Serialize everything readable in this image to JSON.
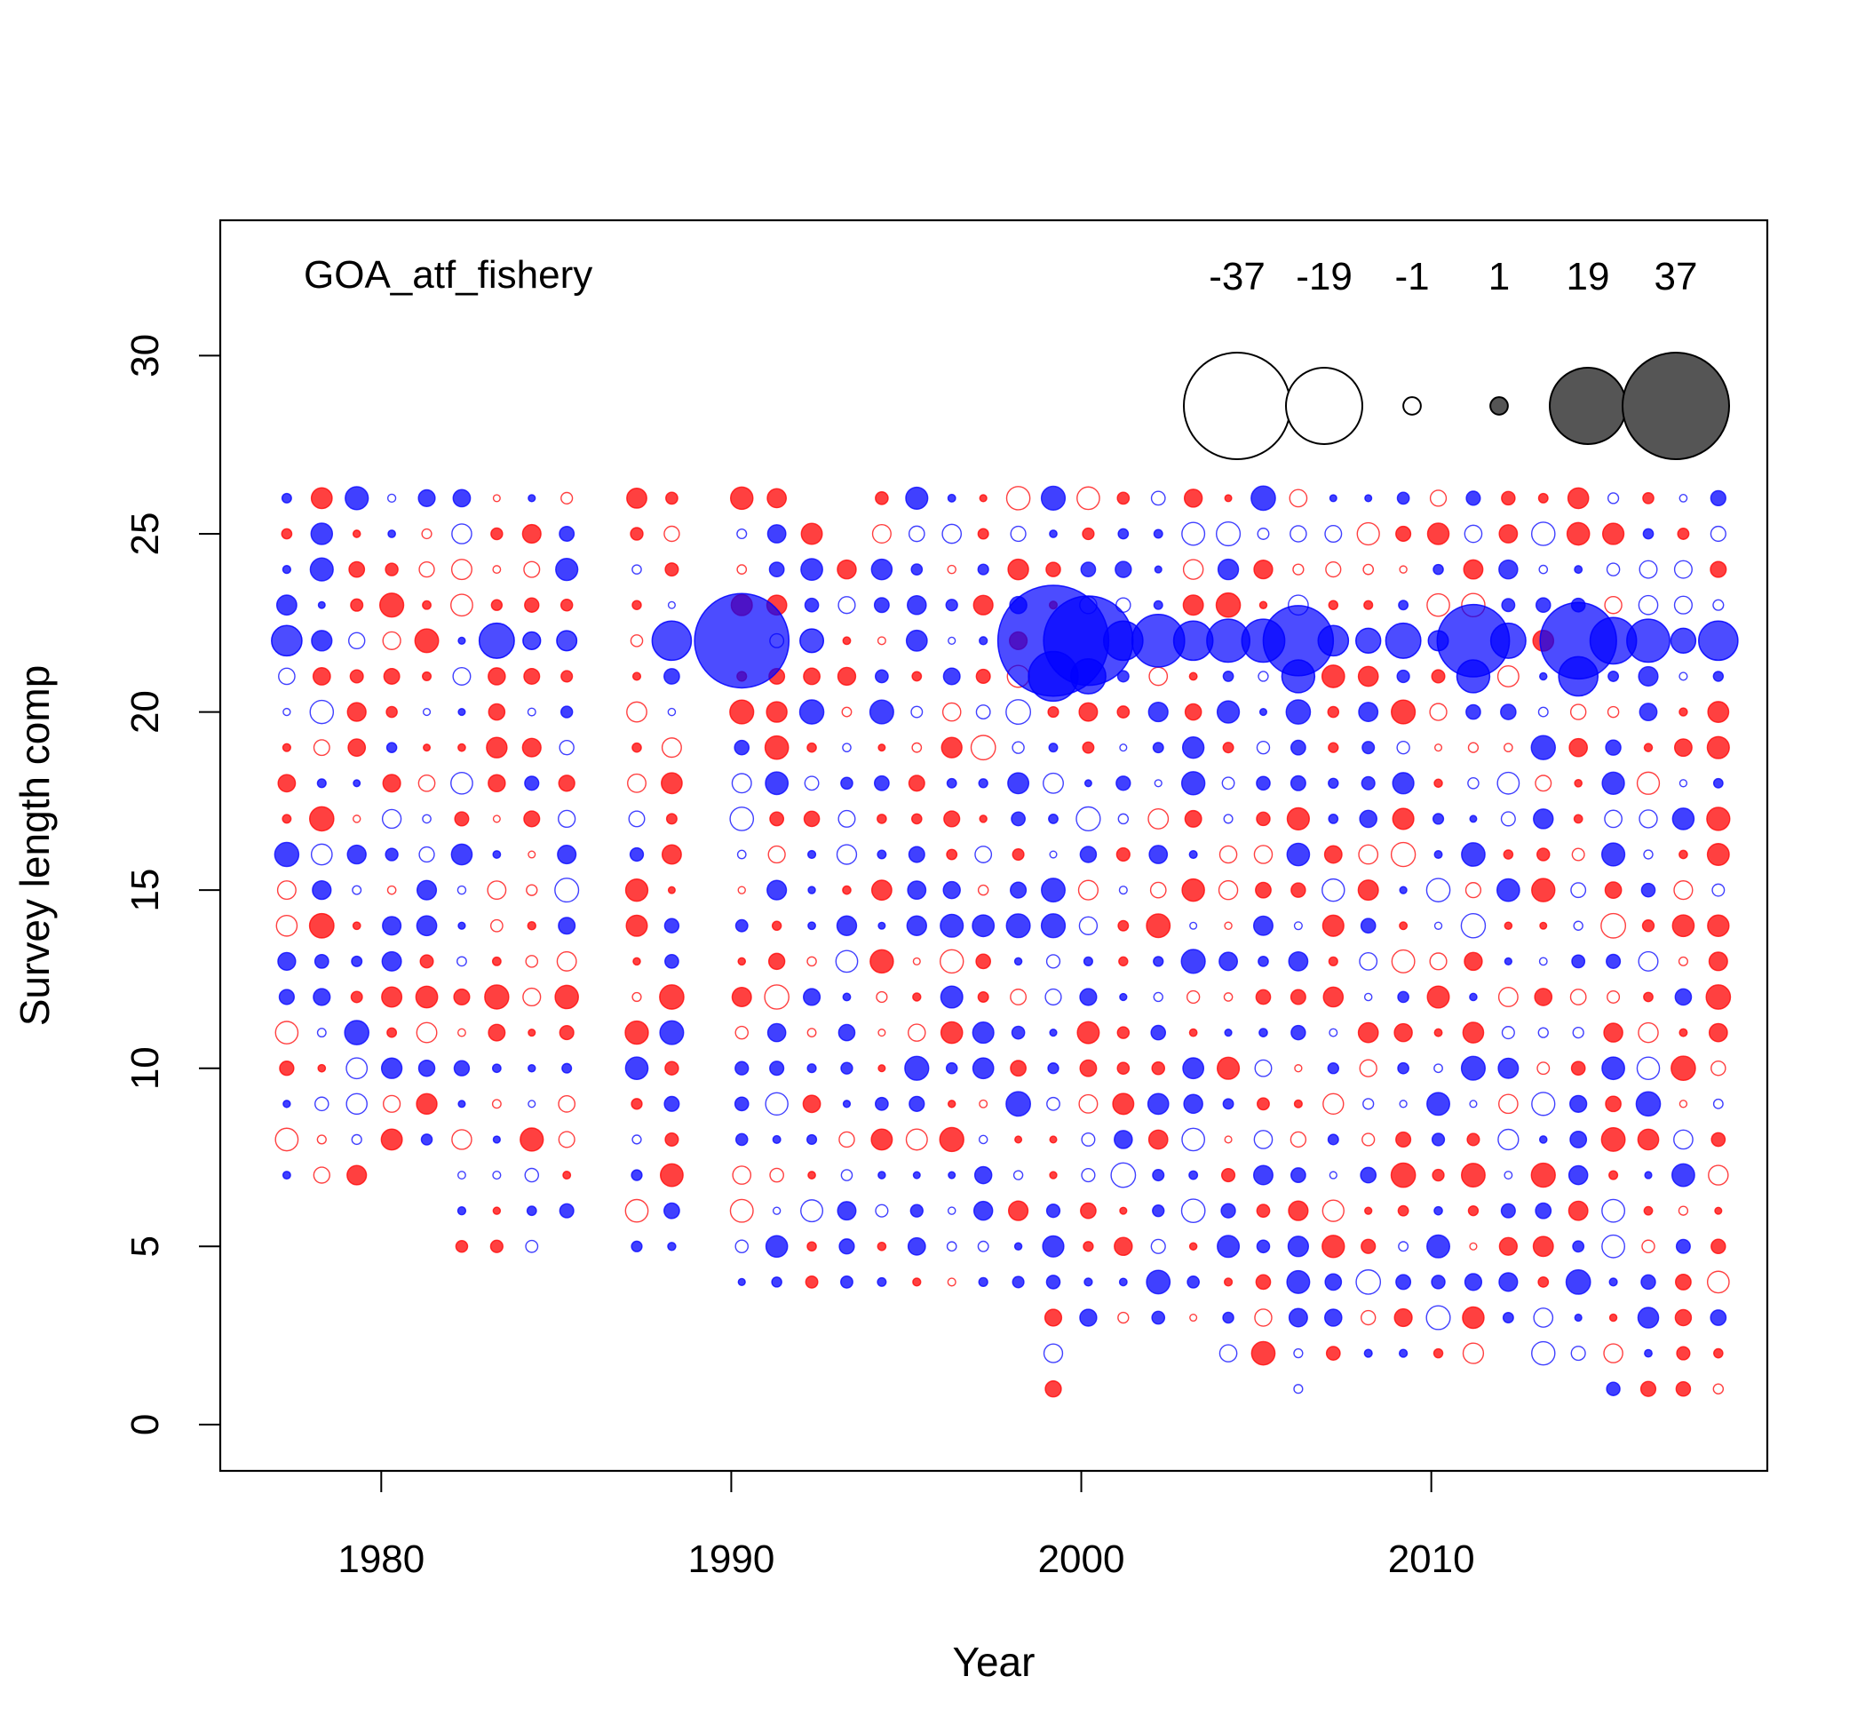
{
  "chart_data": {
    "type": "scatter",
    "subtype": "bubble",
    "panel_label": "GOA_atf_fishery",
    "xlabel": "Year",
    "ylabel": "Survey length comp",
    "xlim": [
      1975.4,
      2019.6
    ],
    "ylim": [
      -1.3,
      33.8
    ],
    "xticks": [
      1980,
      1990,
      2000,
      2010
    ],
    "yticks": [
      0,
      5,
      10,
      15,
      20,
      25,
      30
    ],
    "grid": false,
    "colors": {
      "positive": "#0000ff",
      "negative": "#ff0000",
      "legend_fill": "#555555"
    },
    "bubble_legend": {
      "placement": "top-right",
      "values": [
        -37,
        -19,
        -1,
        1,
        19,
        37
      ]
    },
    "notable_bubbles": [
      {
        "x": 1977.3,
        "y": 22,
        "value": 3
      },
      {
        "x": 1983.3,
        "y": 22,
        "value": 4
      },
      {
        "x": 1984.3,
        "y": 22,
        "value": 1
      },
      {
        "x": 1985.3,
        "y": 22,
        "value": 1.3
      },
      {
        "x": 1988.3,
        "y": 22,
        "value": 5
      },
      {
        "x": 1990.3,
        "y": 22,
        "value": 29
      },
      {
        "x": 1992.3,
        "y": 22,
        "value": 1.8
      },
      {
        "x": 1999.2,
        "y": 22,
        "value": 40
      },
      {
        "x": 1999.2,
        "y": 21,
        "value": 8
      },
      {
        "x": 2000.2,
        "y": 22,
        "value": 26
      },
      {
        "x": 2000.2,
        "y": 21,
        "value": 4
      },
      {
        "x": 2001.2,
        "y": 22,
        "value": 5
      },
      {
        "x": 2002.2,
        "y": 22,
        "value": 9
      },
      {
        "x": 2003.2,
        "y": 22,
        "value": 5
      },
      {
        "x": 2004.2,
        "y": 22,
        "value": 6
      },
      {
        "x": 2005.2,
        "y": 22,
        "value": 6
      },
      {
        "x": 2006.2,
        "y": 22,
        "value": 16
      },
      {
        "x": 2006.2,
        "y": 21,
        "value": 3.5
      },
      {
        "x": 2007.2,
        "y": 22,
        "value": 3
      },
      {
        "x": 2008.2,
        "y": 22,
        "value": 2
      },
      {
        "x": 2009.2,
        "y": 22,
        "value": 4
      },
      {
        "x": 2010.2,
        "y": 22,
        "value": 1.3
      },
      {
        "x": 2011.2,
        "y": 22,
        "value": 17
      },
      {
        "x": 2011.2,
        "y": 21,
        "value": 3.5
      },
      {
        "x": 2012.2,
        "y": 22,
        "value": 4
      },
      {
        "x": 2014.2,
        "y": 22,
        "value": 19
      },
      {
        "x": 2014.2,
        "y": 21,
        "value": 5
      },
      {
        "x": 2015.2,
        "y": 22,
        "value": 7
      },
      {
        "x": 2016.2,
        "y": 22,
        "value": 6
      },
      {
        "x": 2017.2,
        "y": 22,
        "value": 2
      },
      {
        "x": 2018.2,
        "y": 22,
        "value": 5
      }
    ],
    "small_residual_columns": [
      {
        "x": 1977.3,
        "ys": [
          7,
          26
        ]
      },
      {
        "x": 1978.3,
        "ys": [
          7,
          26
        ]
      },
      {
        "x": 1979.3,
        "ys": [
          7,
          26
        ]
      },
      {
        "x": 1980.3,
        "ys": [
          8,
          26
        ]
      },
      {
        "x": 1981.3,
        "ys": [
          8,
          26
        ]
      },
      {
        "x": 1982.3,
        "ys": [
          5,
          26
        ]
      },
      {
        "x": 1983.3,
        "ys": [
          5,
          26
        ]
      },
      {
        "x": 1984.3,
        "ys": [
          5,
          26
        ]
      },
      {
        "x": 1985.3,
        "ys": [
          6,
          26
        ]
      },
      {
        "x": 1987.3,
        "ys": [
          5,
          26
        ]
      },
      {
        "x": 1988.3,
        "ys": [
          5,
          26
        ]
      },
      {
        "x": 1990.3,
        "ys": [
          4,
          26
        ]
      },
      {
        "x": 1991.3,
        "ys": [
          4,
          26
        ]
      },
      {
        "x": 1992.3,
        "ys": [
          4,
          25
        ]
      },
      {
        "x": 1993.3,
        "ys": [
          4,
          24
        ]
      },
      {
        "x": 1994.3,
        "ys": [
          4,
          26
        ]
      },
      {
        "x": 1995.3,
        "ys": [
          4,
          26
        ]
      },
      {
        "x": 1996.3,
        "ys": [
          4,
          26
        ]
      },
      {
        "x": 1997.2,
        "ys": [
          4,
          26
        ]
      },
      {
        "x": 1998.2,
        "ys": [
          4,
          26
        ]
      },
      {
        "x": 1999.2,
        "ys": [
          1,
          26
        ]
      },
      {
        "x": 2000.2,
        "ys": [
          3,
          26
        ]
      },
      {
        "x": 2001.2,
        "ys": [
          3,
          26
        ]
      },
      {
        "x": 2002.2,
        "ys": [
          3,
          26
        ]
      },
      {
        "x": 2003.2,
        "ys": [
          3,
          26
        ]
      },
      {
        "x": 2004.2,
        "ys": [
          2,
          26
        ]
      },
      {
        "x": 2005.2,
        "ys": [
          2,
          26
        ]
      },
      {
        "x": 2006.2,
        "ys": [
          1,
          26
        ]
      },
      {
        "x": 2007.2,
        "ys": [
          2,
          26
        ]
      },
      {
        "x": 2008.2,
        "ys": [
          2,
          26
        ]
      },
      {
        "x": 2009.2,
        "ys": [
          2,
          26
        ]
      },
      {
        "x": 2010.2,
        "ys": [
          2,
          26
        ]
      },
      {
        "x": 2011.2,
        "ys": [
          2,
          26
        ]
      },
      {
        "x": 2012.2,
        "ys": [
          3,
          26
        ]
      },
      {
        "x": 2013.2,
        "ys": [
          2,
          26
        ]
      },
      {
        "x": 2014.2,
        "ys": [
          2,
          26
        ]
      },
      {
        "x": 2015.2,
        "ys": [
          1,
          26
        ]
      },
      {
        "x": 2016.2,
        "ys": [
          1,
          26
        ]
      },
      {
        "x": 2017.2,
        "ys": [
          1,
          26
        ]
      },
      {
        "x": 2018.2,
        "ys": [
          1,
          26
        ]
      }
    ]
  }
}
